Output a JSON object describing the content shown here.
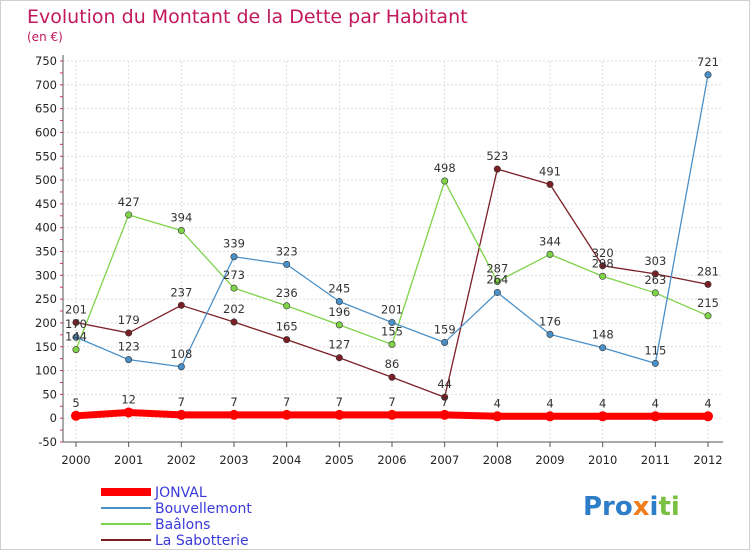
{
  "chart_data": {
    "type": "line",
    "title": "Evolution du Montant de la Dette par Habitant",
    "subtitle": "(en €)",
    "categories": [
      "2000",
      "2001",
      "2002",
      "2003",
      "2004",
      "2005",
      "2006",
      "2007",
      "2008",
      "2009",
      "2010",
      "2011",
      "2012"
    ],
    "yticks": [
      -50,
      0,
      50,
      100,
      150,
      200,
      250,
      300,
      350,
      400,
      450,
      500,
      550,
      600,
      650,
      700,
      750
    ],
    "ylim": [
      -50,
      750
    ],
    "grid": true,
    "legend_position": "bottom-left",
    "series": [
      {
        "name": "JONVAL",
        "color": "#ff0000",
        "values": [
          5,
          12,
          7,
          7,
          7,
          7,
          7,
          7,
          4,
          4,
          4,
          4,
          4
        ]
      },
      {
        "name": "Bouvellemont",
        "color": "#4a90c8",
        "values": [
          170,
          123,
          108,
          339,
          323,
          245,
          201,
          159,
          264,
          176,
          148,
          115,
          721
        ]
      },
      {
        "name": "Baâlons",
        "color": "#7ed348",
        "values": [
          144,
          427,
          394,
          273,
          236,
          196,
          155,
          498,
          287,
          344,
          298,
          263,
          215
        ]
      },
      {
        "name": "La Sabotterie",
        "color": "#7a1f25",
        "values": [
          201,
          179,
          237,
          202,
          165,
          127,
          86,
          44,
          523,
          491,
          320,
          303,
          281
        ]
      }
    ]
  },
  "logo": {
    "text": "Proxiti"
  }
}
